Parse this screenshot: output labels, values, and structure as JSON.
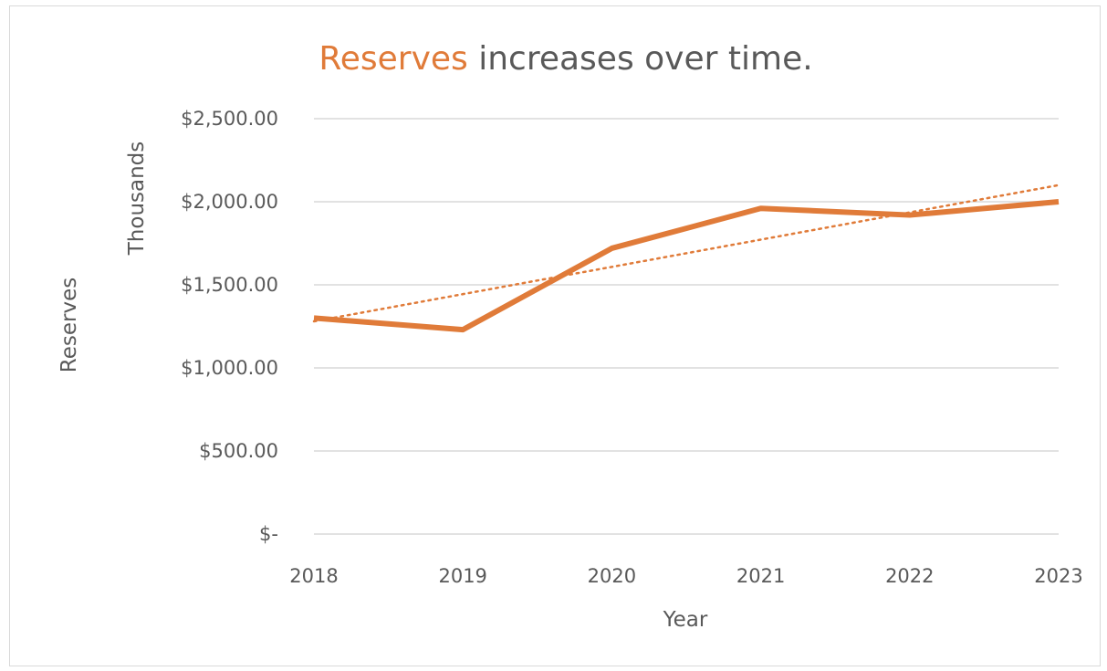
{
  "chart_data": {
    "type": "line",
    "title": {
      "highlight": "Reserves",
      "rest": " increases over time."
    },
    "xlabel": "Year",
    "ylabel": "Reserves",
    "y_display_units": "Thousands",
    "categories": [
      "2018",
      "2019",
      "2020",
      "2021",
      "2022",
      "2023"
    ],
    "series": [
      {
        "values": [
          1300,
          1230,
          1720,
          1960,
          1920,
          2000
        ],
        "color": "#e07b39",
        "style": "solid"
      }
    ],
    "trendline": {
      "type": "linear",
      "style": "dotted",
      "color": "#e07b39",
      "values": [
        1280,
        2100
      ]
    },
    "ylim": [
      0,
      2500
    ],
    "yticks": [
      0,
      500,
      1000,
      1500,
      2000,
      2500
    ],
    "ytick_labels": [
      "$-",
      "$500.00",
      "$1,000.00",
      "$1,500.00",
      "$2,000.00",
      "$2,500.00"
    ],
    "grid": true,
    "legend": "none",
    "colors": {
      "accent": "#e07b39",
      "text": "#595959",
      "title_text": "#595959",
      "gridline": "#d9d9d9"
    }
  }
}
